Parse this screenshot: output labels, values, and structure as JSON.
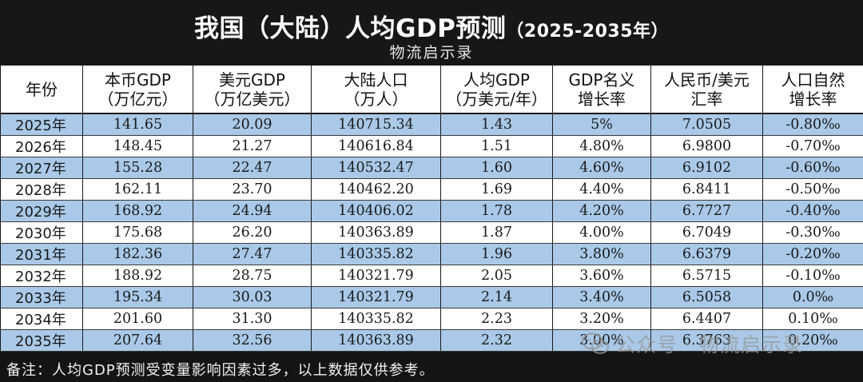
{
  "header": {
    "title_main": "我国（大陆）人均GDP预测",
    "title_range": "（2025-2035年）",
    "subtitle": "物流启示录"
  },
  "table": {
    "columns": [
      {
        "line1": "年份",
        "line2": ""
      },
      {
        "line1": "本币GDP",
        "line2": "（万亿元）"
      },
      {
        "line1": "美元GDP",
        "line2": "（万亿美元）"
      },
      {
        "line1": "大陆人口",
        "line2": "（万人）"
      },
      {
        "line1": "人均GDP",
        "line2": "（万美元/年）"
      },
      {
        "line1": "GDP名义",
        "line2": "增长率"
      },
      {
        "line1": "人民币/美元",
        "line2": "汇率"
      },
      {
        "line1": "人口自然",
        "line2": "增长率"
      }
    ],
    "rows": [
      [
        "2025年",
        "141.65",
        "20.09",
        "140715.34",
        "1.43",
        "5%",
        "7.0505",
        "-0.80‰"
      ],
      [
        "2026年",
        "148.45",
        "21.27",
        "140616.84",
        "1.51",
        "4.80%",
        "6.9800",
        "-0.70‰"
      ],
      [
        "2027年",
        "155.28",
        "22.47",
        "140532.47",
        "1.60",
        "4.60%",
        "6.9102",
        "-0.60‰"
      ],
      [
        "2028年",
        "162.11",
        "23.70",
        "140462.20",
        "1.69",
        "4.40%",
        "6.8411",
        "-0.50‰"
      ],
      [
        "2029年",
        "168.92",
        "24.94",
        "140406.02",
        "1.78",
        "4.20%",
        "6.7727",
        "-0.40‰"
      ],
      [
        "2030年",
        "175.68",
        "26.20",
        "140363.89",
        "1.87",
        "4.00%",
        "6.7049",
        "-0.30‰"
      ],
      [
        "2031年",
        "182.36",
        "27.47",
        "140335.82",
        "1.96",
        "3.80%",
        "6.6379",
        "-0.20‰"
      ],
      [
        "2032年",
        "188.92",
        "28.75",
        "140321.79",
        "2.05",
        "3.60%",
        "6.5715",
        "-0.10‰"
      ],
      [
        "2033年",
        "195.34",
        "30.03",
        "140321.79",
        "2.14",
        "3.40%",
        "6.5058",
        "0.0‰"
      ],
      [
        "2034年",
        "201.60",
        "31.30",
        "140335.82",
        "2.23",
        "3.20%",
        "6.4407",
        "0.10‰"
      ],
      [
        "2035年",
        "207.64",
        "32.56",
        "140363.89",
        "2.32",
        "3.00%",
        "6.3763",
        "0.20‰"
      ]
    ]
  },
  "footnote": "备注：人均GDP预测受变量影响因素过多，以上数据仅供参考。",
  "watermark": {
    "icon": "wechat-icon",
    "text": "公众号 · 物流启示录"
  },
  "colors": {
    "background": "#141414",
    "row_blue": "#aac9e8",
    "row_white": "#ffffff"
  }
}
